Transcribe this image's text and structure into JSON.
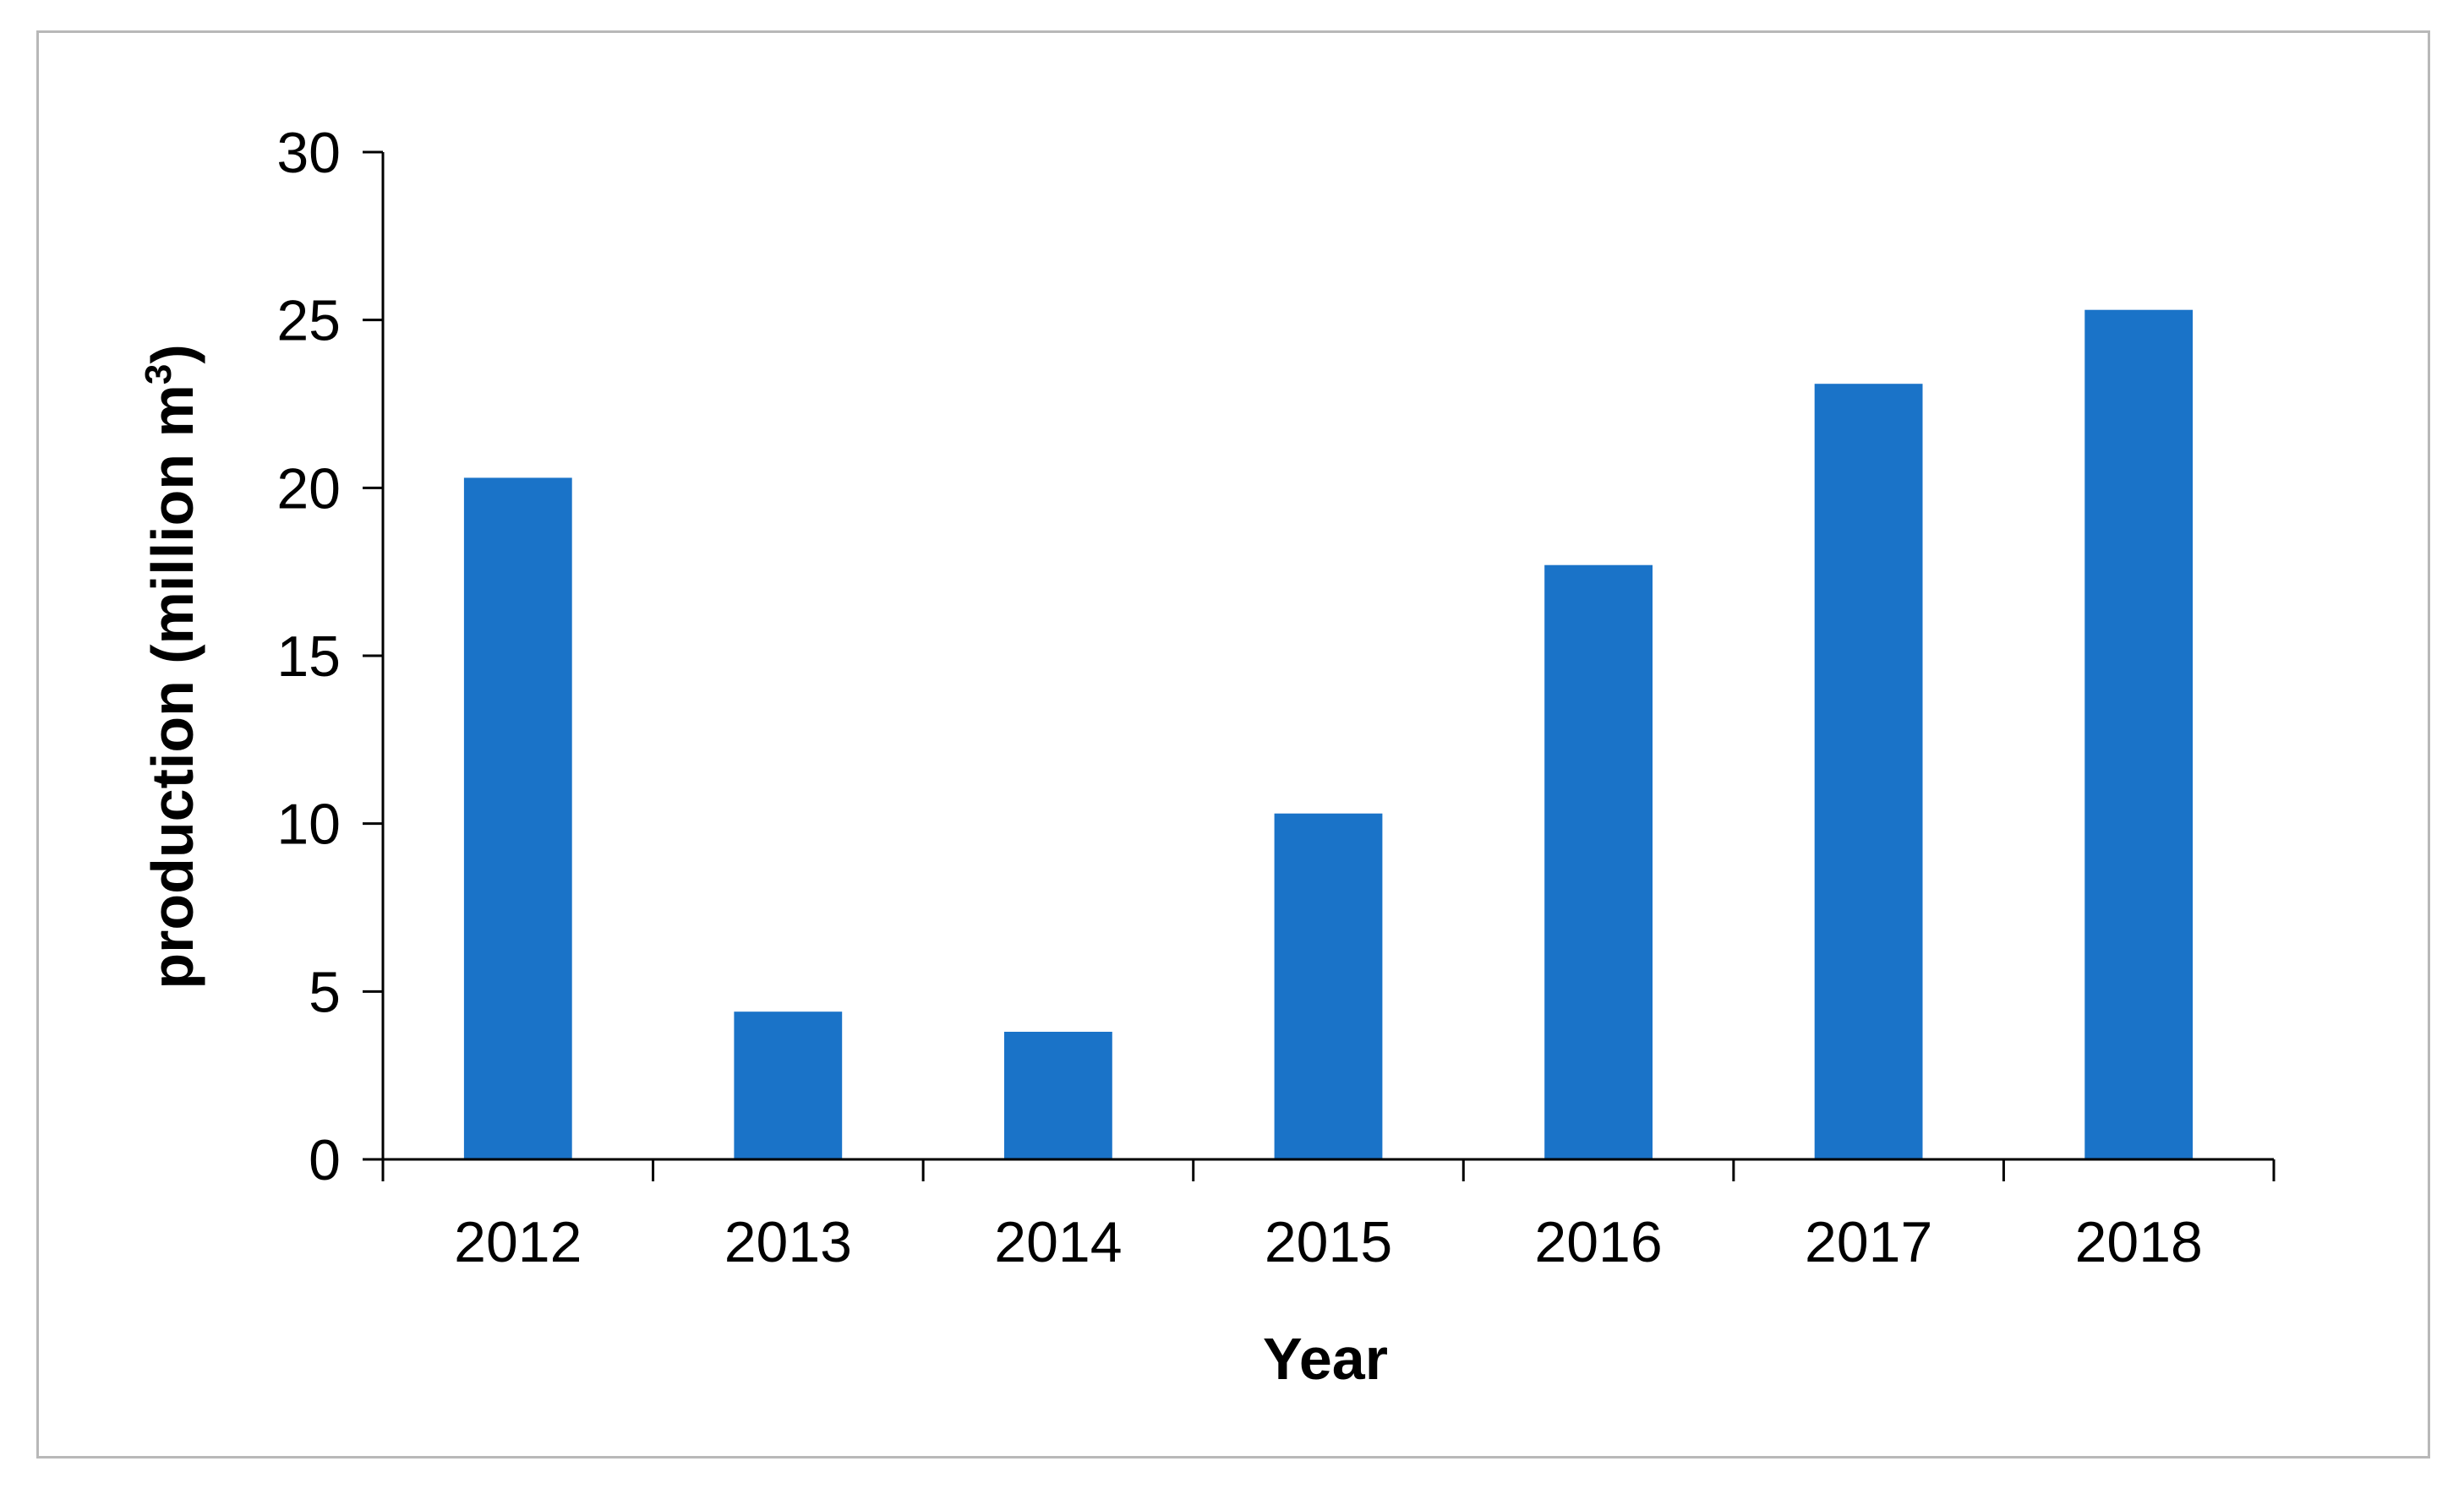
{
  "chart_data": {
    "type": "bar",
    "categories": [
      "2012",
      "2013",
      "2014",
      "2015",
      "2016",
      "2017",
      "2018"
    ],
    "values": [
      20.3,
      4.4,
      3.8,
      10.3,
      17.7,
      23.1,
      25.3
    ],
    "title": "",
    "xlabel": "Year",
    "ylabel": "production (million m",
    "ylabel_sup": "3",
    "ylabel_close": ")",
    "ylim": [
      0,
      30
    ],
    "yticks": [
      "0",
      "5",
      "10",
      "15",
      "20",
      "25",
      "30"
    ],
    "grid": false,
    "legend": "none"
  },
  "colors": {
    "bar": "#1a73c8",
    "axis": "#000000",
    "frame": "#b8b8b8"
  }
}
